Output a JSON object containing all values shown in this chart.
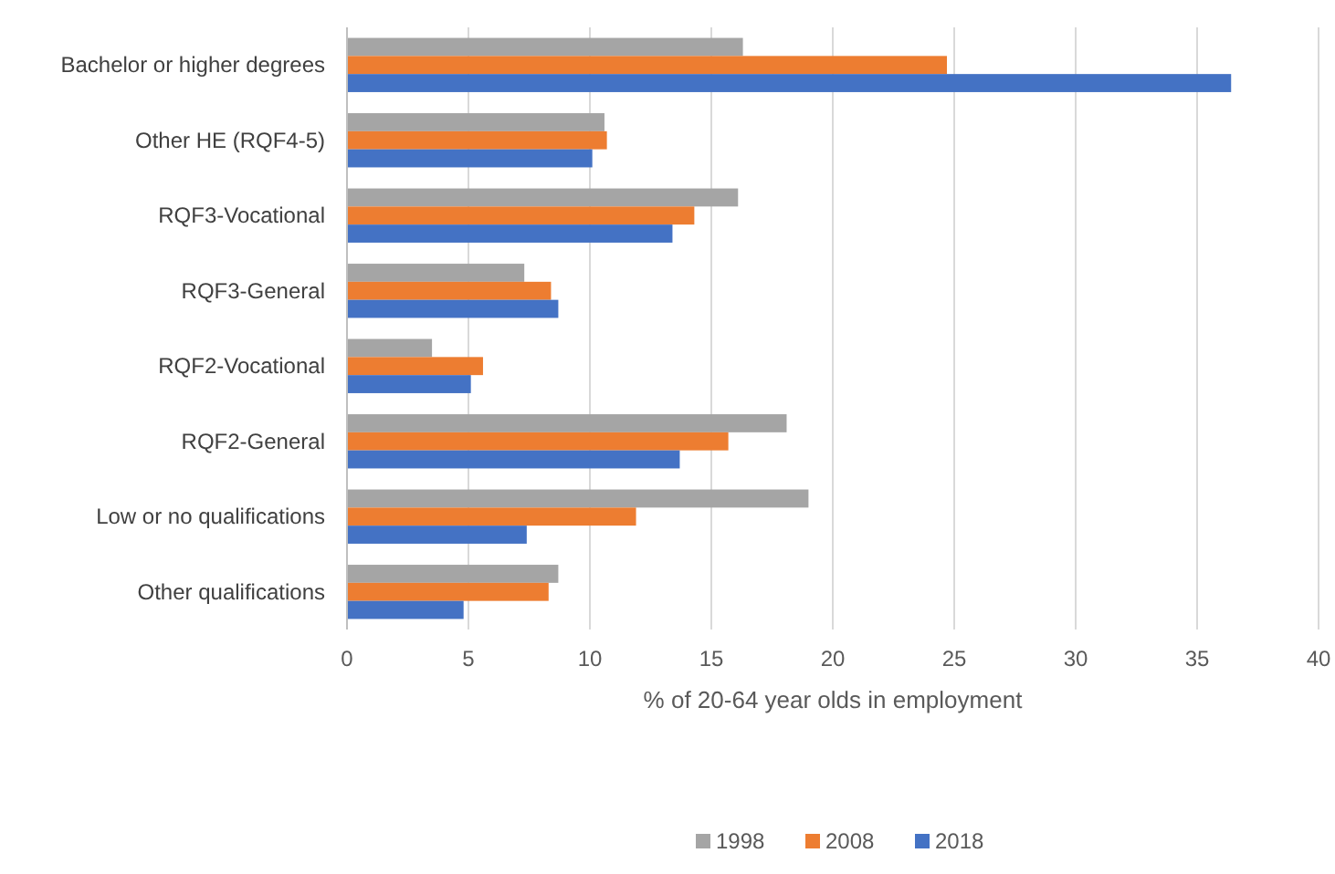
{
  "chart_data": {
    "type": "bar",
    "orientation": "horizontal",
    "xlabel": "% of 20-64 year olds in employment",
    "categories": [
      "Bachelor or higher degrees",
      "Other HE (RQF4-5)",
      "RQF3-Vocational",
      "RQF3-General",
      "RQF2-Vocational",
      "RQF2-General",
      "Low or no qualifications",
      "Other qualifications"
    ],
    "series": [
      {
        "name": "1998",
        "color": "#a5a5a5",
        "values": [
          16.3,
          10.6,
          16.1,
          7.3,
          3.5,
          18.1,
          19.0,
          8.7
        ]
      },
      {
        "name": "2008",
        "color": "#ed7d31",
        "values": [
          24.7,
          10.7,
          14.3,
          8.4,
          5.6,
          15.7,
          11.9,
          8.3
        ]
      },
      {
        "name": "2018",
        "color": "#4472c4",
        "values": [
          36.4,
          10.1,
          13.4,
          8.7,
          5.1,
          13.7,
          7.4,
          4.8
        ]
      }
    ],
    "xlim": [
      0,
      40
    ],
    "xticks": [
      0,
      5,
      10,
      15,
      20,
      25,
      30,
      35,
      40
    ],
    "grid": "x",
    "legend": "bottom"
  }
}
